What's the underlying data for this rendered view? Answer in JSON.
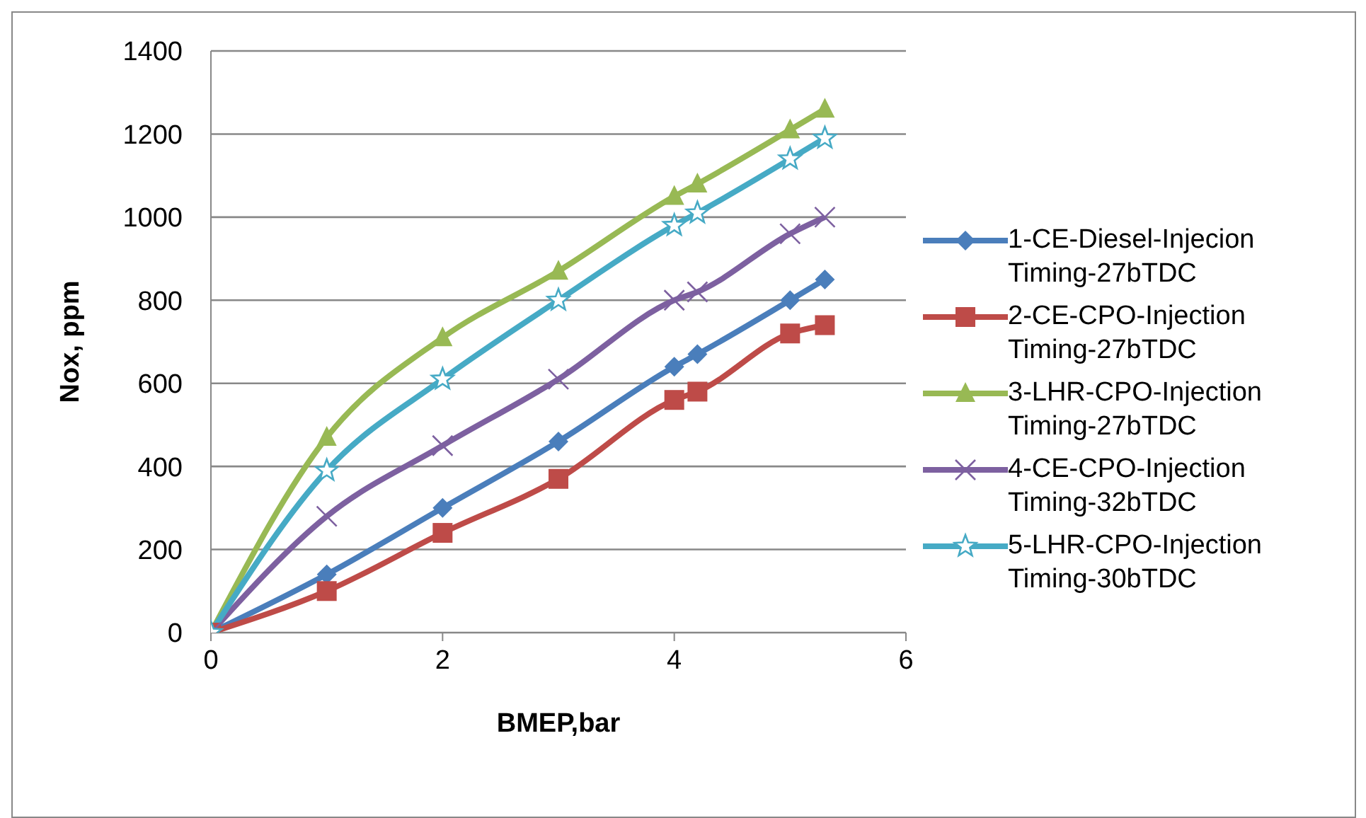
{
  "chart_data": {
    "type": "line",
    "xlabel": "BMEP,bar",
    "ylabel": "Nox, ppm",
    "x": [
      0,
      1,
      2,
      3,
      4,
      4.2,
      5,
      5.3
    ],
    "xlim": [
      0,
      6
    ],
    "xticks": [
      0,
      2,
      4,
      6
    ],
    "ylim": [
      0,
      1400
    ],
    "yticks": [
      0,
      200,
      400,
      600,
      800,
      1000,
      1200,
      1400
    ],
    "grid": "y",
    "legend": "right",
    "series": [
      {
        "name": "1-CE-Diesel-Injecion Timing-27bTDC",
        "color": "#4a7ebb",
        "marker": "diamond",
        "values": [
          0,
          140,
          300,
          460,
          640,
          670,
          800,
          850
        ]
      },
      {
        "name": "2-CE-CPO-Injection Timing-27bTDC",
        "color": "#be4b48",
        "marker": "square",
        "values": [
          0,
          100,
          240,
          370,
          560,
          580,
          720,
          740
        ]
      },
      {
        "name": "3-LHR-CPO-Injection Timing-27bTDC",
        "color": "#98b954",
        "marker": "triangle",
        "values": [
          0,
          470,
          710,
          870,
          1050,
          1080,
          1210,
          1260
        ]
      },
      {
        "name": "4-CE-CPO-Injection Timing-32bTDC",
        "color": "#7d60a0",
        "marker": "cross",
        "values": [
          0,
          280,
          450,
          610,
          800,
          820,
          960,
          1000
        ]
      },
      {
        "name": "5-LHR-CPO-Injection Timing-30bTDC",
        "color": "#46aac5",
        "marker": "star",
        "values": [
          0,
          390,
          610,
          800,
          980,
          1010,
          1140,
          1190
        ]
      }
    ]
  }
}
